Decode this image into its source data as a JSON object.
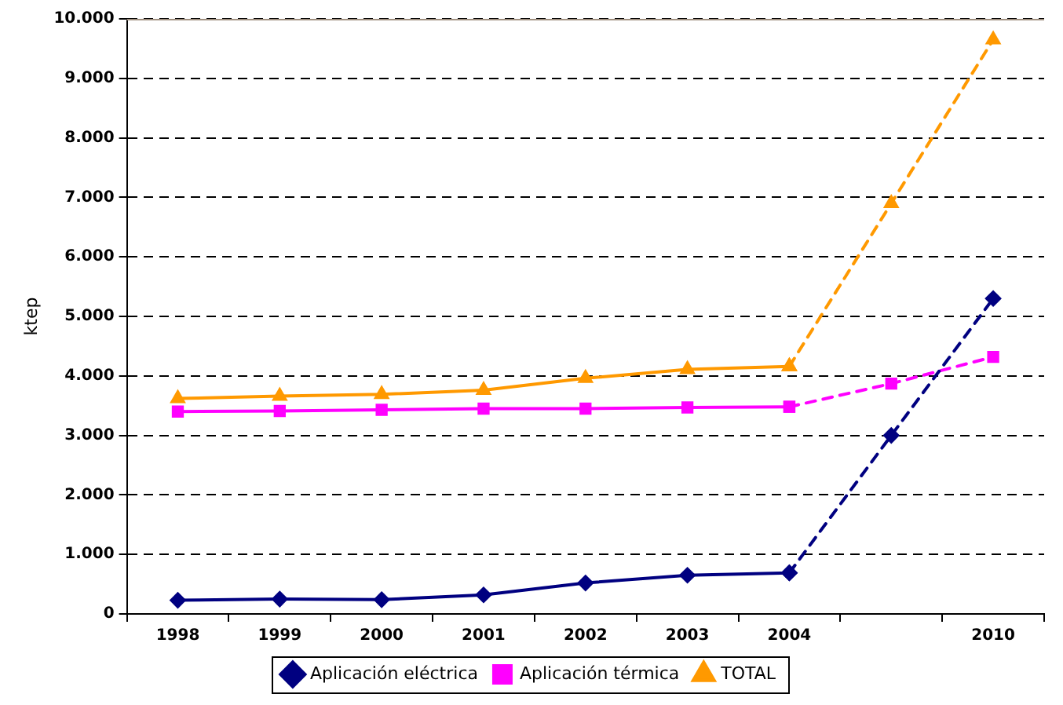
{
  "chart_data": {
    "type": "line",
    "ylabel": "ktep",
    "categories": [
      "1998",
      "1999",
      "2000",
      "2001",
      "2002",
      "2003",
      "2004",
      null,
      "2010"
    ],
    "ylim": [
      0,
      10000
    ],
    "yticks": [
      0,
      {
        "value": 1000,
        "label": "1.000"
      },
      {
        "value": 2000,
        "label": "2.000"
      },
      {
        "value": 3000,
        "label": "3.000"
      },
      {
        "value": 4000,
        "label": "4.000"
      },
      {
        "value": 5000,
        "label": "5.000"
      },
      {
        "value": 6000,
        "label": "6.000"
      },
      {
        "value": 7000,
        "label": "7.000"
      },
      {
        "value": 8000,
        "label": "8.000"
      },
      {
        "value": 9000,
        "label": "9.000"
      },
      {
        "value": 10000,
        "label": "10.000"
      }
    ],
    "grid": "y",
    "legend": "bottom",
    "series": [
      {
        "name": "Aplicación eléctrica",
        "color": "#000080",
        "marker": "diamond",
        "line_style": "solid",
        "values": [
          230,
          250,
          240,
          320,
          520,
          650,
          690,
          null,
          null
        ]
      },
      {
        "color": "#000080",
        "marker": "diamond",
        "line_style": "dashed",
        "values": [
          null,
          null,
          null,
          null,
          null,
          null,
          690,
          3000,
          5300
        ]
      },
      {
        "name": "Aplicación térmica",
        "color": "#ff00ff",
        "marker": "square",
        "line_style": "solid",
        "values": [
          3400,
          3410,
          3430,
          3450,
          3450,
          3470,
          3480,
          null,
          null
        ]
      },
      {
        "color": "#ff00ff",
        "marker": "square",
        "line_style": "dashed",
        "values": [
          null,
          null,
          null,
          null,
          null,
          null,
          3480,
          3870,
          4320
        ]
      },
      {
        "name": "TOTAL",
        "color": "#ff9900",
        "marker": "triangle",
        "line_style": "solid",
        "values": [
          3620,
          3660,
          3690,
          3760,
          3960,
          4110,
          4160,
          null,
          null
        ]
      },
      {
        "color": "#ff9900",
        "marker": "triangle",
        "line_style": "dashed",
        "values": [
          null,
          null,
          null,
          null,
          null,
          null,
          4160,
          6900,
          9650
        ]
      }
    ]
  }
}
